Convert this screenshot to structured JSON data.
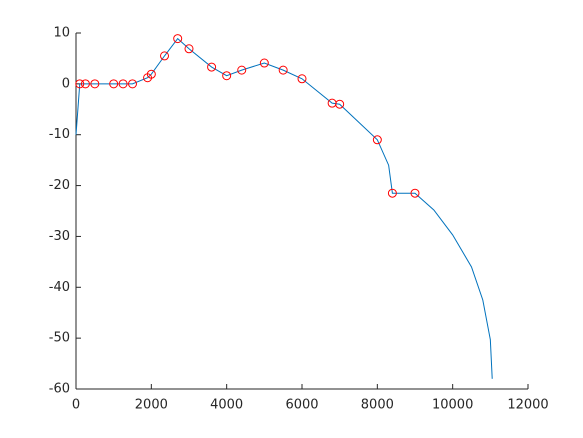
{
  "chart_data": {
    "type": "line",
    "xlim": [
      0,
      12000
    ],
    "xticks": [
      0,
      2000,
      4000,
      6000,
      8000,
      10000,
      12000
    ],
    "ylim": [
      -60,
      10
    ],
    "yticks": [
      -60,
      -50,
      -40,
      -30,
      -20,
      -10,
      0,
      10
    ],
    "series": [
      {
        "color": "#0072bd",
        "marker": "none",
        "x": [
          0,
          100,
          250,
          500,
          1000,
          1250,
          1500,
          1900,
          2000,
          2350,
          2700,
          3000,
          3600,
          4000,
          4400,
          5000,
          5500,
          6000,
          6800,
          7000,
          8000,
          8300,
          8400,
          9000,
          9500,
          10000,
          10500,
          10800,
          11000,
          11050
        ],
        "values": [
          -10,
          0,
          0,
          0,
          0,
          0,
          0,
          1.2,
          1.9,
          5.5,
          8.9,
          6.9,
          3.3,
          1.6,
          2.7,
          4.1,
          2.7,
          1.0,
          -3.8,
          -4.0,
          -11.0,
          -16,
          -21.5,
          -21.5,
          -24.8,
          -29.7,
          -36,
          -42.5,
          -50.3,
          -58
        ]
      },
      {
        "color": "#ff0000",
        "marker": "circle",
        "x": [
          100,
          250,
          500,
          1000,
          1250,
          1500,
          1900,
          2000,
          2350,
          2700,
          3000,
          3600,
          4000,
          4400,
          5000,
          5500,
          6000,
          6800,
          7000,
          8000,
          8400,
          9000
        ],
        "values": [
          0,
          0,
          0,
          0,
          0,
          0,
          1.2,
          1.9,
          5.5,
          8.9,
          6.9,
          3.3,
          1.6,
          2.7,
          4.1,
          2.7,
          1.0,
          -3.8,
          -4.0,
          -11.0,
          -21.5,
          -21.5
        ]
      }
    ]
  }
}
